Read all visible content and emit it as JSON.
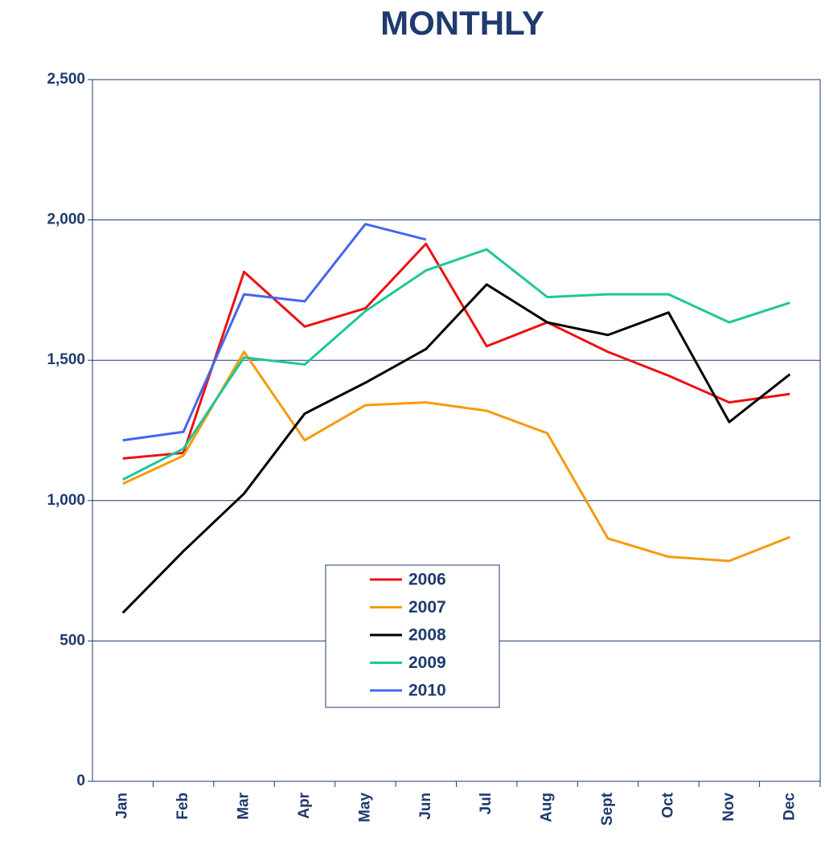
{
  "chart_data": {
    "type": "line",
    "title": "MONTHLY",
    "categories": [
      "Jan",
      "Feb",
      "Mar",
      "Apr",
      "May",
      "Jun",
      "Jul",
      "Aug",
      "Sept",
      "Oct",
      "Nov",
      "Dec"
    ],
    "series": [
      {
        "name": "2006",
        "color": "#ee1111",
        "values": [
          1150,
          1170,
          1815,
          1620,
          1685,
          1915,
          1550,
          1635,
          1530,
          1445,
          1350,
          1380
        ]
      },
      {
        "name": "2007",
        "color": "#f59b0c",
        "values": [
          1060,
          1160,
          1530,
          1215,
          1340,
          1350,
          1320,
          1240,
          865,
          800,
          785,
          870
        ]
      },
      {
        "name": "2008",
        "color": "#000000",
        "values": [
          600,
          820,
          1025,
          1310,
          1420,
          1540,
          1770,
          1635,
          1590,
          1670,
          1280,
          1450
        ]
      },
      {
        "name": "2009",
        "color": "#1ec79a",
        "values": [
          1075,
          1185,
          1510,
          1485,
          1675,
          1820,
          1895,
          1725,
          1735,
          1735,
          1635,
          1705
        ]
      },
      {
        "name": "2010",
        "color": "#4466ee",
        "values": [
          1215,
          1245,
          1735,
          1710,
          1985,
          1930,
          null,
          null,
          null,
          null,
          null,
          null
        ]
      }
    ],
    "ylim": [
      0,
      2500
    ],
    "yticks": [
      0,
      500,
      {
        "value": 1000,
        "label": "1,000"
      },
      {
        "value": 1500,
        "label": "1,500"
      },
      {
        "value": 2000,
        "label": "2,000"
      },
      {
        "value": 2500,
        "label": "2,500"
      }
    ],
    "grid": true,
    "legend": "center"
  }
}
